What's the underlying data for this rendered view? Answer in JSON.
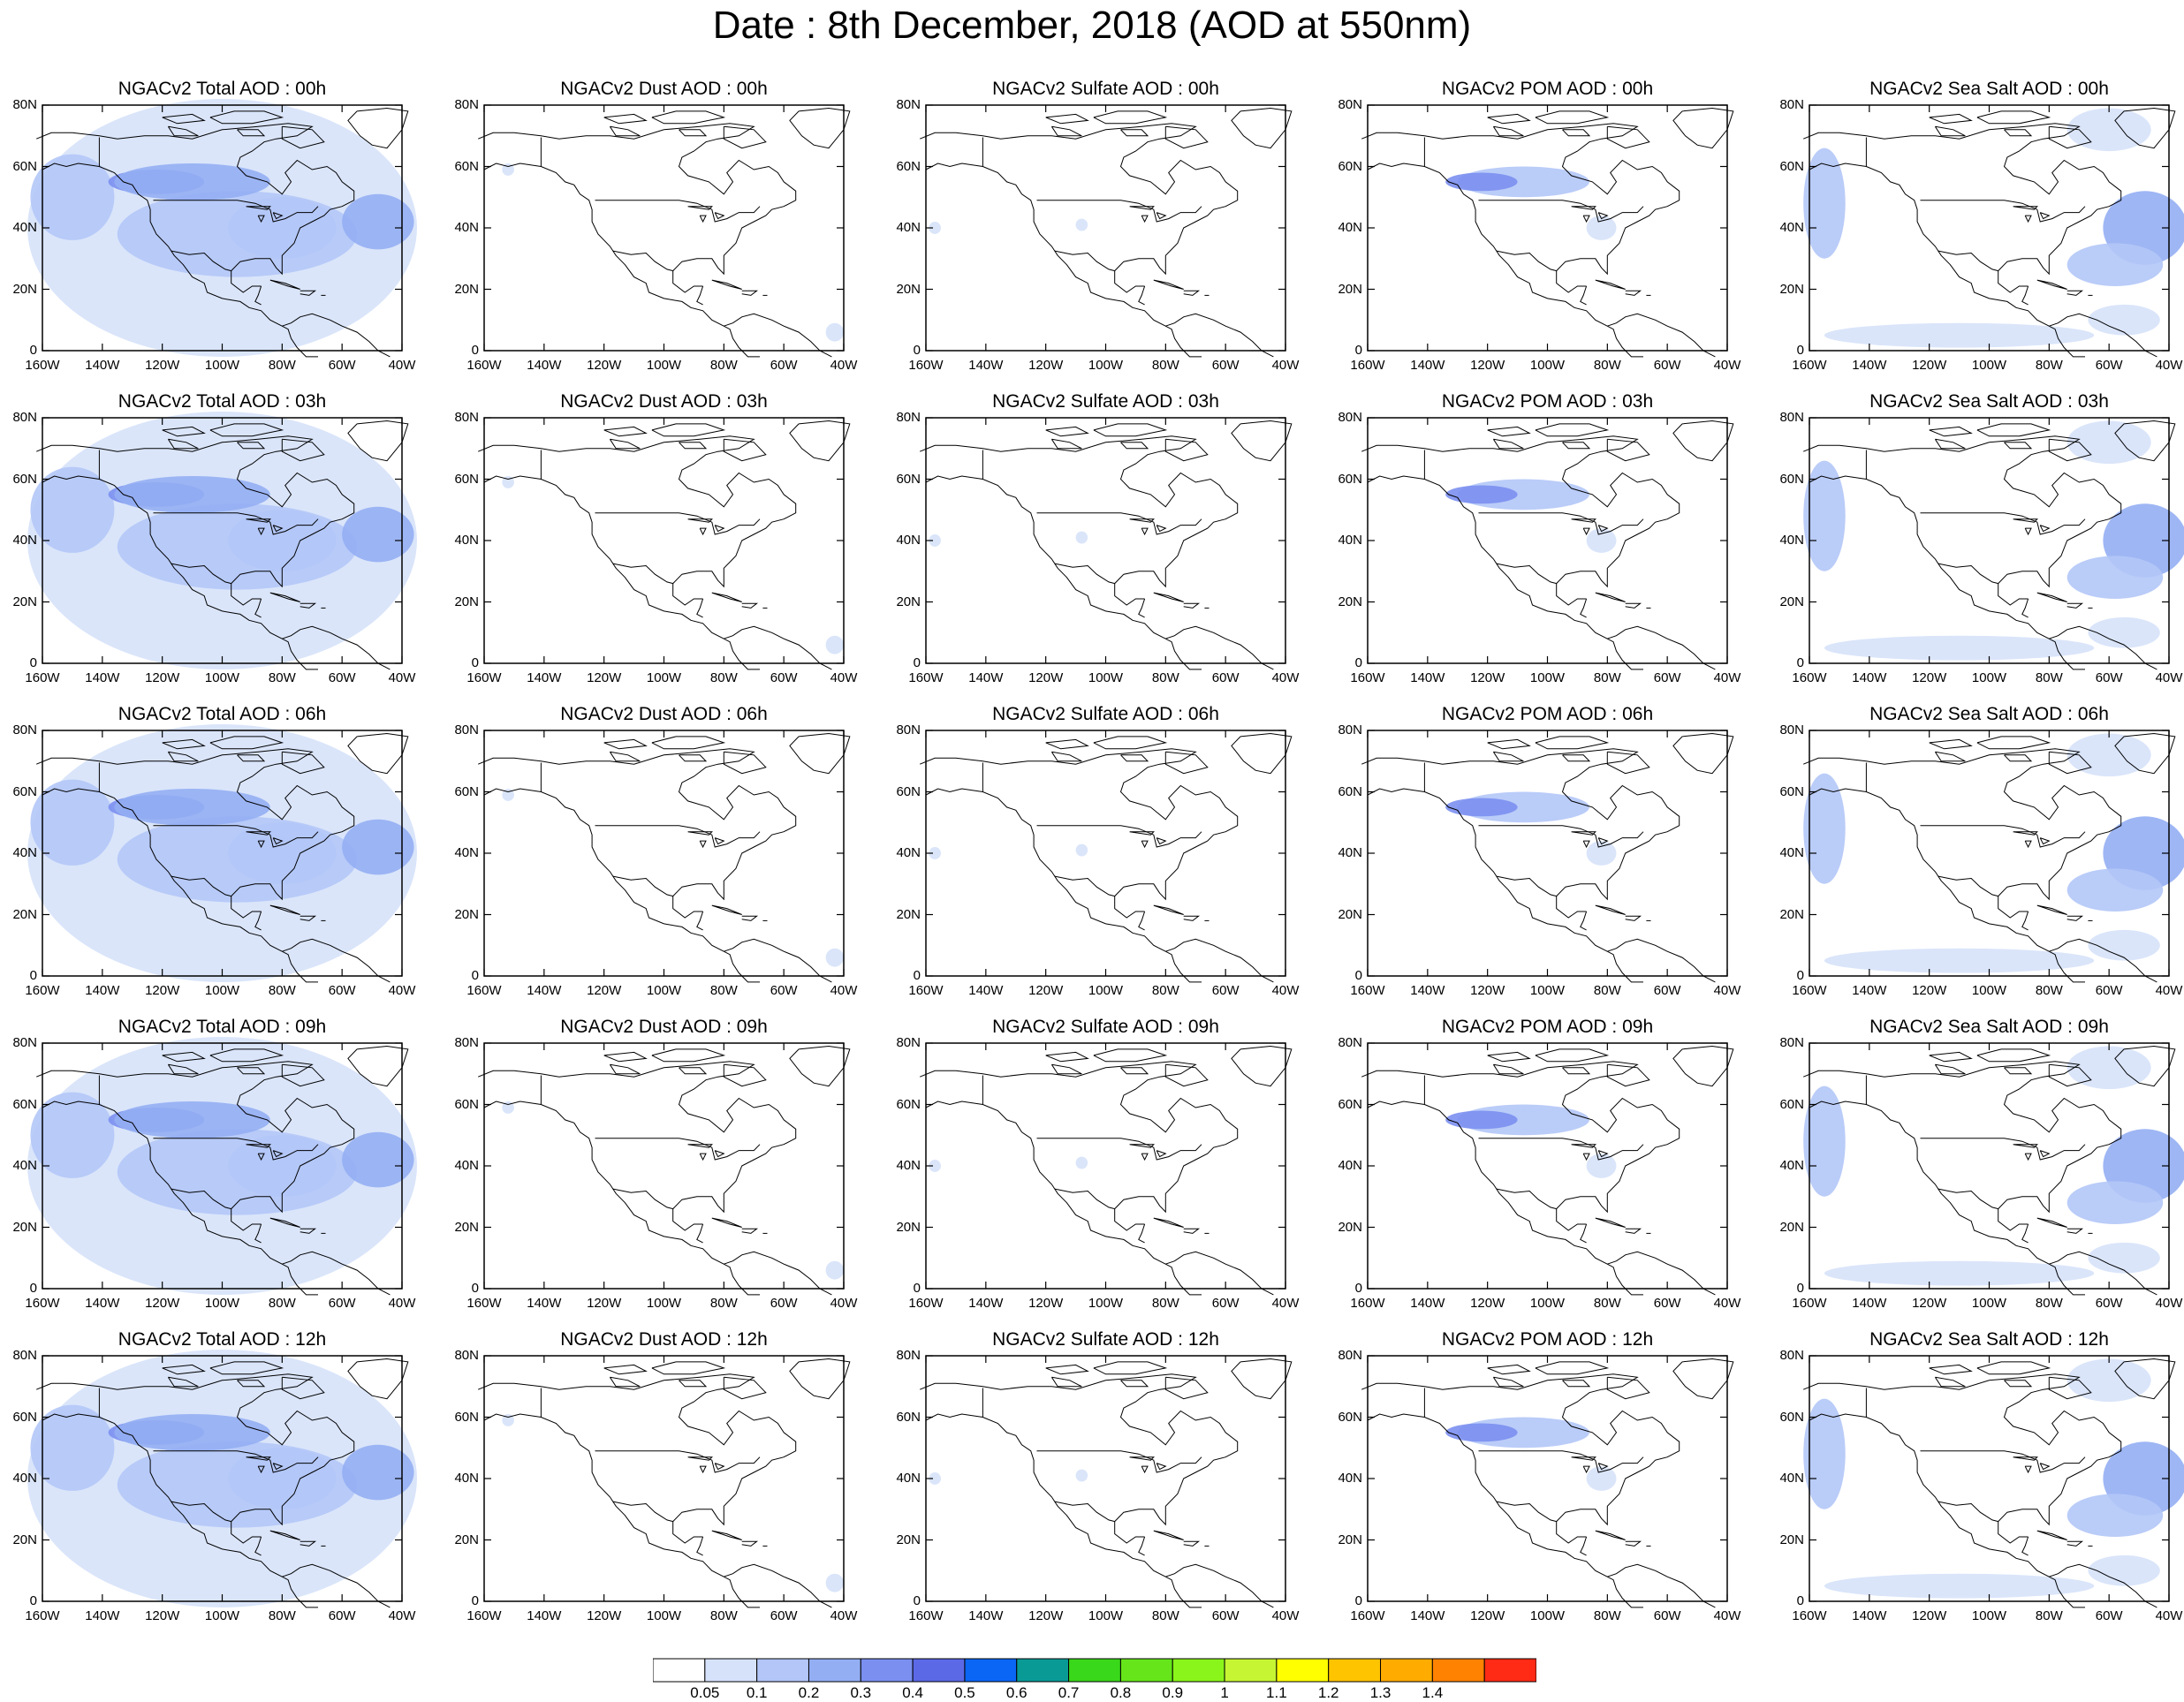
{
  "title": "Date : 8th December, 2018 (AOD at 550nm)",
  "x_ticks": [
    "160W",
    "140W",
    "120W",
    "100W",
    "80W",
    "60W",
    "40W"
  ],
  "y_ticks": [
    "80N",
    "60N",
    "40N",
    "20N",
    "0"
  ],
  "colorbar": {
    "labels": [
      "0.05",
      "0.1",
      "0.2",
      "0.3",
      "0.4",
      "0.5",
      "0.6",
      "0.7",
      "0.8",
      "0.9",
      "1",
      "1.1",
      "1.2",
      "1.3",
      "1.4"
    ],
    "colors": [
      "#ffffff",
      "#d6e2fa",
      "#b3c6f7",
      "#93aef3",
      "#7b8ff0",
      "#5b69e6",
      "#0a66f5",
      "#0a9a96",
      "#39d81a",
      "#66e61a",
      "#8af51a",
      "#c6f533",
      "#ffff00",
      "#ffc400",
      "#ffab00",
      "#ff8200",
      "#ff2b14"
    ]
  },
  "shade_colors": {
    "light": "#d6e2fa",
    "mid": "#b3c6f7",
    "dark": "#93aef3",
    "darker": "#7b8ff0"
  },
  "rows": [
    {
      "time": "00h",
      "titles": [
        "NGACv2 Total AOD : 00h",
        "NGACv2 Dust AOD : 00h",
        "NGACv2 Sulfate AOD : 00h",
        "NGACv2 POM AOD : 00h",
        "NGACv2 Sea Salt AOD : 00h"
      ]
    },
    {
      "time": "03h",
      "titles": [
        "NGACv2 Total AOD : 03h",
        "NGACv2 Dust AOD : 03h",
        "NGACv2 Sulfate AOD : 03h",
        "NGACv2 POM AOD : 03h",
        "NGACv2 Sea Salt AOD : 03h"
      ]
    },
    {
      "time": "06h",
      "titles": [
        "NGACv2 Total AOD : 06h",
        "NGACv2 Dust AOD : 06h",
        "NGACv2 Sulfate AOD : 06h",
        "NGACv2 POM AOD : 06h",
        "NGACv2 Sea Salt AOD : 06h"
      ]
    },
    {
      "time": "09h",
      "titles": [
        "NGACv2 Total AOD : 09h",
        "NGACv2 Dust AOD : 09h",
        "NGACv2 Sulfate AOD : 09h",
        "NGACv2 POM AOD : 09h",
        "NGACv2 Sea Salt  AOD : 09h"
      ]
    },
    {
      "time": "12h",
      "titles": [
        "NGACv2 Total AOD  : 12h",
        "NGACv2 Dust AOD : 12h",
        "NGACv2 Sulfate AOD : 12h",
        "NGACv2 POM  AOD : 12h",
        "NGACv2 Sea Salt  AOD : 12h"
      ]
    }
  ],
  "species": [
    "total",
    "dust",
    "sulfate",
    "pom",
    "seasalt"
  ],
  "map_extent": {
    "lon": [
      -160,
      -40
    ],
    "lat": [
      0,
      80
    ]
  }
}
